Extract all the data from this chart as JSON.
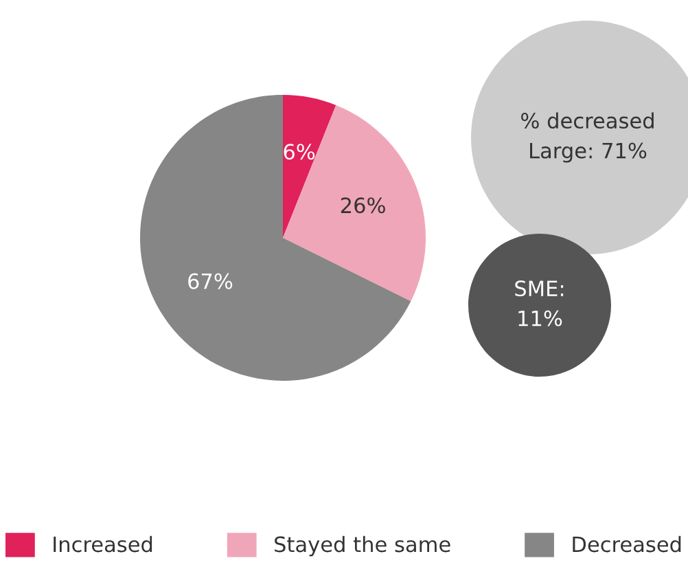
{
  "chart_data": {
    "type": "pie",
    "categories": [
      "Increased",
      "Stayed the same",
      "Decreased"
    ],
    "values": [
      6,
      26,
      67
    ],
    "colors": [
      "#e0215a",
      "#f0a6b9",
      "#868686"
    ],
    "value_labels": [
      "6%",
      "26%",
      "67%"
    ],
    "legend": "bottom",
    "annotations": [
      "% decreased\nLarge: 71%",
      "SME:\n11%"
    ]
  }
}
